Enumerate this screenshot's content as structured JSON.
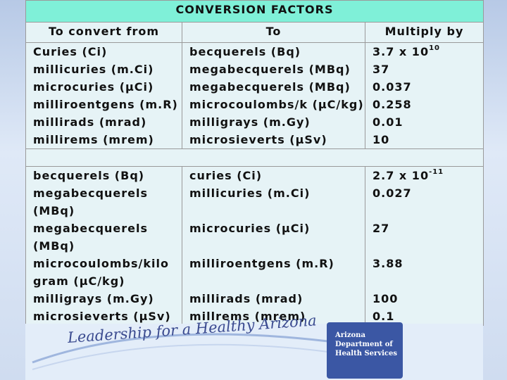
{
  "title": "CONVERSION FACTORS",
  "headers": {
    "from": "To convert from",
    "to": "To",
    "multiply": "Multiply by"
  },
  "group1": {
    "from": [
      "Curies (Ci)",
      "millicuries (m.Ci)",
      "microcuries (µCi)",
      "milliroentgens (m.R)",
      "millirads (mrad)",
      "millirems (mrem)"
    ],
    "to": [
      "becquerels (Bq)",
      "megabecquerels (MBq)",
      "megabecquerels (MBq)",
      "microcoulombs/k (µC/kg)",
      "milligrays (m.Gy)",
      "microsieverts (µSv)"
    ],
    "factor_first_base": "3.7 x 10",
    "factor_first_exp": "10",
    "factors_rest": [
      "37",
      "0.037",
      "0.258",
      "0.01",
      "10"
    ]
  },
  "group2": {
    "rows": [
      {
        "from": [
          "becquerels (Bq)"
        ],
        "to": [
          "curies (Ci)"
        ],
        "factor_base": "2.7 x 10",
        "factor_exp": "-11"
      },
      {
        "from": [
          "megabecquerels",
          "(MBq)"
        ],
        "to": [
          "millicuries (m.Ci)"
        ],
        "factor": "0.027"
      },
      {
        "from": [
          "megabecquerels",
          "(MBq)"
        ],
        "to": [
          "microcuries (µCi)"
        ],
        "factor": "27"
      },
      {
        "from": [
          "microcoulombs/kilo",
          "gram (µC/kg)"
        ],
        "to": [
          "milliroentgens (m.R)"
        ],
        "factor": "3.88"
      },
      {
        "from": [
          "milligrays (m.Gy)"
        ],
        "to": [
          "millirads (mrad)"
        ],
        "factor": "100"
      },
      {
        "from": [
          "microsieverts (µSv)"
        ],
        "to": [
          "millrems (mrem)"
        ],
        "factor": "0.1"
      }
    ]
  },
  "footer": {
    "slogan": "Leadership for a Healthy Arizona",
    "logo_lines": [
      "Arizona",
      "Department of",
      "Health Services"
    ]
  },
  "colors": {
    "title_bg": "#7ff0d8",
    "cell_bg": "#e6f3f6",
    "logo_bg": "#3b57a4",
    "slogan": "#3a4a8f"
  }
}
